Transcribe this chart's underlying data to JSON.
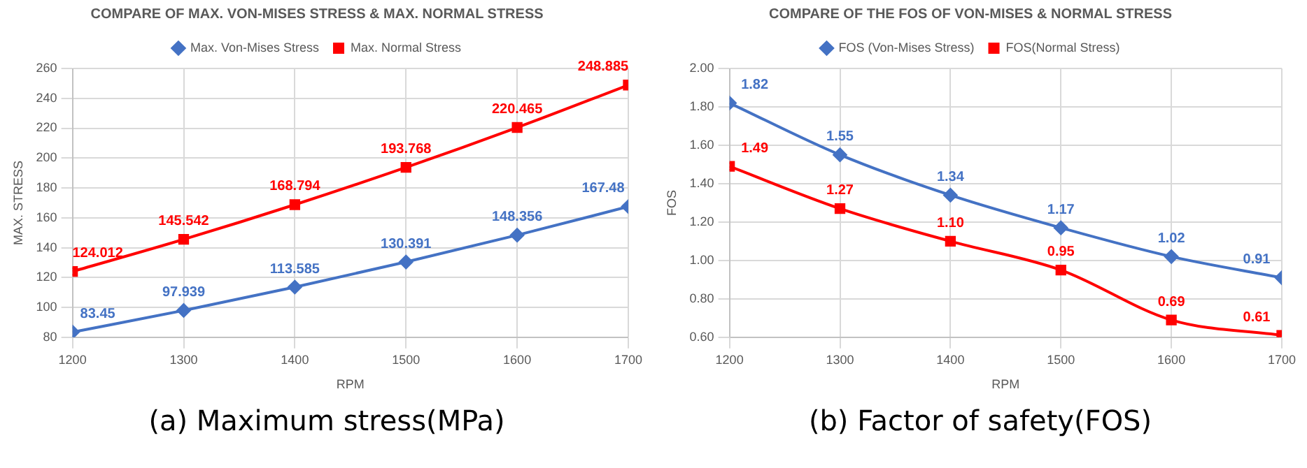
{
  "chart_data": [
    {
      "type": "line",
      "title": "COMPARE OF MAX. VON-MISES STRESS & MAX. NORMAL STRESS",
      "xlabel": "RPM",
      "ylabel": "MAX. STRESS",
      "x": [
        1200,
        1300,
        1400,
        1500,
        1600,
        1700
      ],
      "xlim": [
        1200,
        1700
      ],
      "xticks": [
        1200,
        1300,
        1400,
        1500,
        1600,
        1700
      ],
      "ylim": [
        80,
        260
      ],
      "yticks": [
        80,
        100,
        120,
        140,
        160,
        180,
        200,
        220,
        240,
        260
      ],
      "grid": true,
      "legend": "top",
      "annotations": [
        "(a) Maximum stress(MPa)"
      ],
      "series": [
        {
          "name": "Max. Von-Mises Stress",
          "color": "#4472c4",
          "marker": "diamond",
          "values": [
            83.45,
            97.939,
            113.585,
            130.391,
            148.356,
            167.48
          ],
          "value_labels": [
            "83.45",
            "97.939",
            "113.585",
            "130.391",
            "148.356",
            "167.48"
          ]
        },
        {
          "name": "Max. Normal Stress",
          "color": "#ff0000",
          "marker": "square",
          "values": [
            124.012,
            145.542,
            168.794,
            193.768,
            220.465,
            248.885
          ],
          "value_labels": [
            "124.012",
            "145.542",
            "168.794",
            "193.768",
            "220.465",
            "248.885"
          ]
        }
      ]
    },
    {
      "type": "line",
      "title": "COMPARE OF THE FOS OF VON-MISES & NORMAL STRESS",
      "xlabel": "RPM",
      "ylabel": "FOS",
      "x": [
        1200,
        1300,
        1400,
        1500,
        1600,
        1700
      ],
      "xlim": [
        1200,
        1700
      ],
      "xticks": [
        1200,
        1300,
        1400,
        1500,
        1600,
        1700
      ],
      "ylim": [
        0.6,
        2.0
      ],
      "yticks": [
        {
          "value": 0.6,
          "label": "0.60"
        },
        {
          "value": 0.8,
          "label": "0.80"
        },
        {
          "value": 1.0,
          "label": "1.00"
        },
        {
          "value": 1.2,
          "label": "1.20"
        },
        {
          "value": 1.4,
          "label": "1.40"
        },
        {
          "value": 1.6,
          "label": "1.60"
        },
        {
          "value": 1.8,
          "label": "1.80"
        },
        {
          "value": 2.0,
          "label": "2.00"
        }
      ],
      "grid": true,
      "legend": "top",
      "annotations": [
        "(b) Factor of safety(FOS)"
      ],
      "series": [
        {
          "name": "FOS (Von-Mises Stress)",
          "color": "#4472c4",
          "marker": "diamond",
          "values": [
            1.82,
            1.55,
            1.34,
            1.17,
            1.02,
            0.91
          ],
          "value_labels": [
            "1.82",
            "1.55",
            "1.34",
            "1.17",
            "1.02",
            "0.91"
          ]
        },
        {
          "name": "FOS(Normal Stress)",
          "color": "#ff0000",
          "marker": "square",
          "values": [
            1.49,
            1.27,
            1.1,
            0.95,
            0.69,
            0.61
          ],
          "value_labels": [
            "1.49",
            "1.27",
            "1.10",
            "0.95",
            "0.69",
            "0.61"
          ]
        }
      ]
    }
  ]
}
